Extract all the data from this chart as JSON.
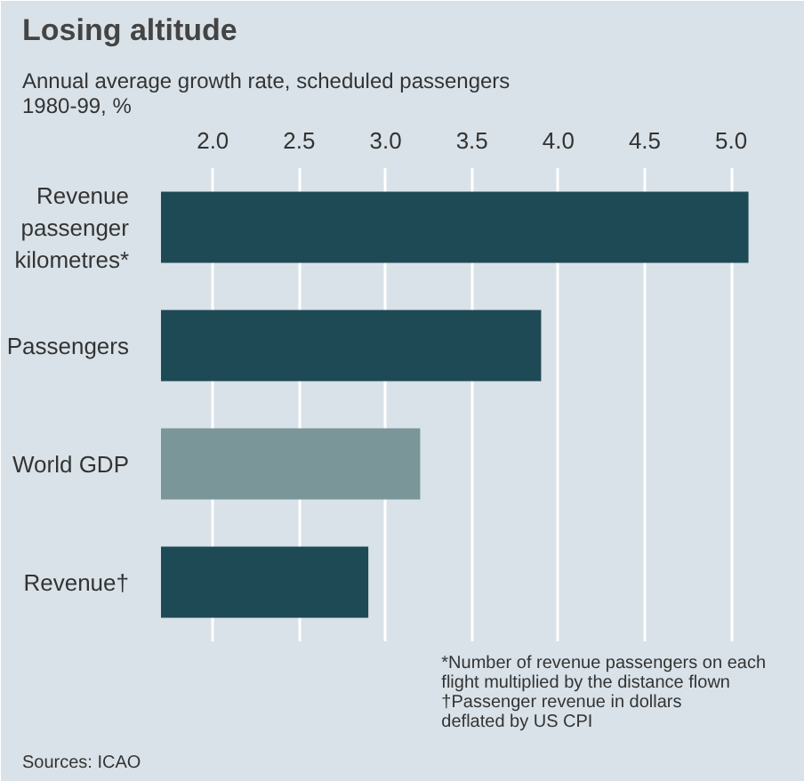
{
  "chart_data": {
    "type": "bar",
    "orientation": "horizontal",
    "title": "Losing altitude",
    "subtitle": "Annual average growth rate, scheduled passengers\n1980-99, %",
    "categories": [
      "Revenue\npassenger\nkilometres*",
      "Passengers",
      "World GDP",
      "Revenue†"
    ],
    "values": [
      5.1,
      3.9,
      3.2,
      2.9
    ],
    "colors": [
      "#1d4a55",
      "#1d4a55",
      "#7b9699",
      "#1d4a55"
    ],
    "xlim": [
      1.7,
      5.2
    ],
    "xticks": [
      {
        "value": 2,
        "label": "2.0"
      },
      {
        "value": 2.5,
        "label": "2.5"
      },
      {
        "value": 3,
        "label": "3.0"
      },
      {
        "value": 3.5,
        "label": "3.5"
      },
      {
        "value": 4,
        "label": "4.0"
      },
      {
        "value": 4.5,
        "label": "4.5"
      },
      {
        "value": 5,
        "label": "5.0"
      }
    ],
    "grid": "x",
    "annotations": [
      "*Number of revenue passengers on each\nflight multiplied by the distance flown\n†Passenger revenue in dollars\ndeflated by US CPI",
      "Sources: ICAO"
    ]
  }
}
